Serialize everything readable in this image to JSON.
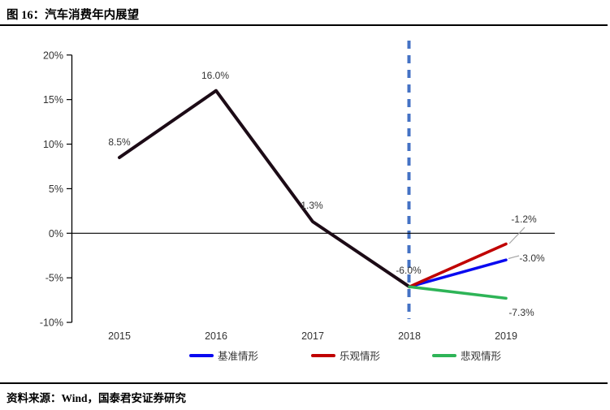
{
  "figure": {
    "title": "图 16：汽车消费年内展望",
    "source": "资料来源：Wind，国泰君安证券研究"
  },
  "chart_data": {
    "type": "line",
    "title": "汽车消费年内展望",
    "categories": [
      "2015",
      "2016",
      "2017",
      "2018",
      "2019"
    ],
    "y_axis": {
      "tick_labels": [
        "20%",
        "15%",
        "10%",
        "5%",
        "0%",
        "-5%",
        "-10%"
      ],
      "tick_values": [
        20,
        15,
        10,
        5,
        0,
        -5,
        -10
      ],
      "ylim": [
        -10,
        20
      ],
      "unit": "%"
    },
    "series": [
      {
        "name": "",
        "color": "#1c0b16",
        "values": [
          8.5,
          16.0,
          1.3,
          -6.0,
          null
        ],
        "in_legend": false
      },
      {
        "name": "基准情形",
        "color": "#0a0af0",
        "values": [
          null,
          null,
          null,
          -6.0,
          -3.0
        ],
        "in_legend": true
      },
      {
        "name": "乐观情形",
        "color": "#c00000",
        "values": [
          null,
          null,
          null,
          -6.0,
          -1.2
        ],
        "in_legend": true
      },
      {
        "name": "悲观情形",
        "color": "#2eb457",
        "values": [
          null,
          null,
          null,
          -6.0,
          -7.3
        ],
        "in_legend": true
      }
    ],
    "data_labels": [
      "8.5%",
      "16.0%",
      "1.3%",
      "-6.0%",
      "-1.2%",
      "-3.0%",
      "-7.3%"
    ],
    "annotations": {
      "forecast_divider": {
        "x_category": "2018",
        "style": "dashed",
        "color": "#4472c4"
      }
    },
    "legend_position": "bottom",
    "grid": false
  }
}
